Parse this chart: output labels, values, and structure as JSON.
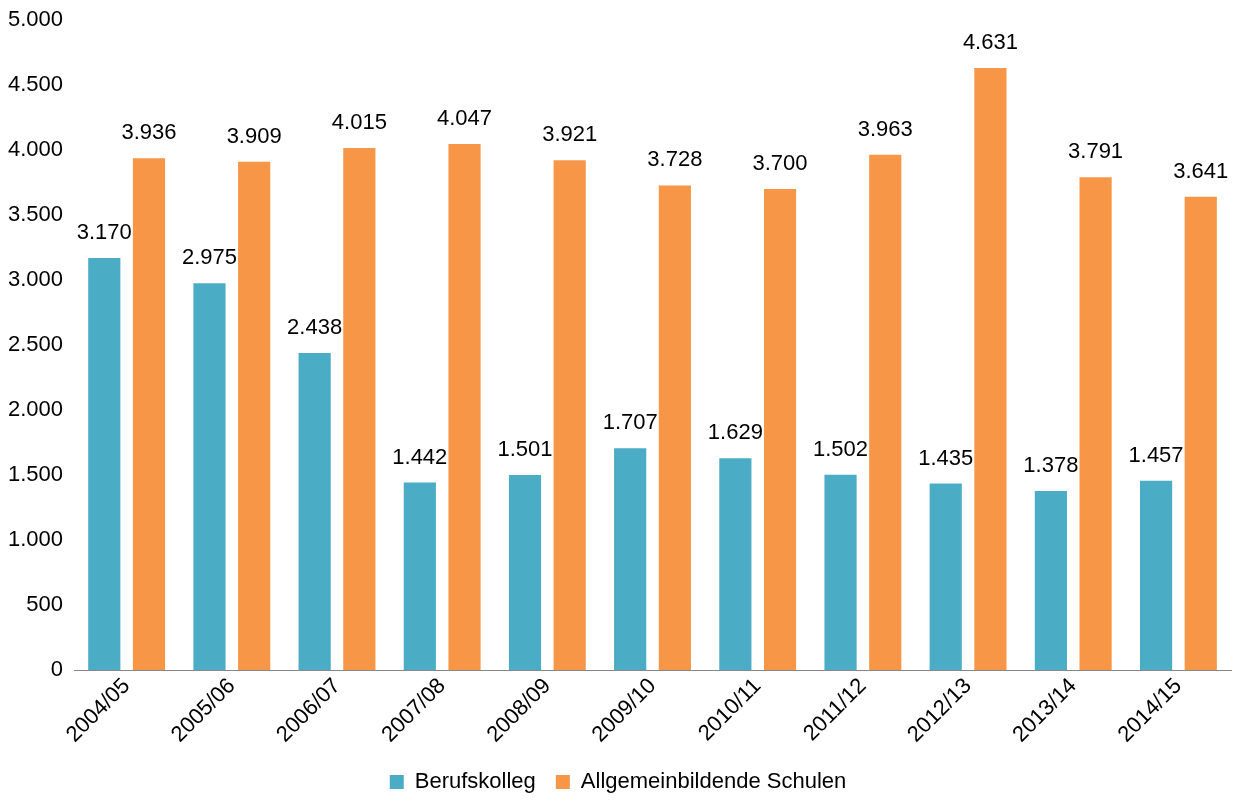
{
  "chart_data": {
    "type": "bar",
    "categories": [
      "2004/05",
      "2005/06",
      "2006/07",
      "2007/08",
      "2008/09",
      "2009/10",
      "2010/11",
      "2011/12",
      "2012/13",
      "2013/14",
      "2014/15"
    ],
    "series": [
      {
        "name": "Berufskolleg",
        "color": "#4bacc6",
        "values": [
          3170,
          2975,
          2438,
          1442,
          1501,
          1707,
          1629,
          1502,
          1435,
          1378,
          1457
        ],
        "value_labels": [
          "3.170",
          "2.975",
          "2.438",
          "1.442",
          "1.501",
          "1.707",
          "1.629",
          "1.502",
          "1.435",
          "1.378",
          "1.457"
        ]
      },
      {
        "name": "Allgemeinbildende Schulen",
        "color": "#f79646",
        "values": [
          3936,
          3909,
          4015,
          4047,
          3921,
          3728,
          3700,
          3963,
          4631,
          3791,
          3641
        ],
        "value_labels": [
          "3.936",
          "3.909",
          "4.015",
          "4.047",
          "3.921",
          "3.728",
          "3.700",
          "3.963",
          "4.631",
          "3.791",
          "3.641"
        ]
      }
    ],
    "ylim": [
      0,
      5000
    ],
    "yticks": [
      {
        "value": 0,
        "label": "0"
      },
      {
        "value": 500,
        "label": "500"
      },
      {
        "value": 1000,
        "label": "1.000"
      },
      {
        "value": 1500,
        "label": "1.500"
      },
      {
        "value": 2000,
        "label": "2.000"
      },
      {
        "value": 2500,
        "label": "2.500"
      },
      {
        "value": 3000,
        "label": "3.000"
      },
      {
        "value": 3500,
        "label": "3.500"
      },
      {
        "value": 4000,
        "label": "4.000"
      },
      {
        "value": 4500,
        "label": "4.500"
      },
      {
        "value": 5000,
        "label": "5.000"
      }
    ],
    "grid": false,
    "legend": "bottom"
  }
}
